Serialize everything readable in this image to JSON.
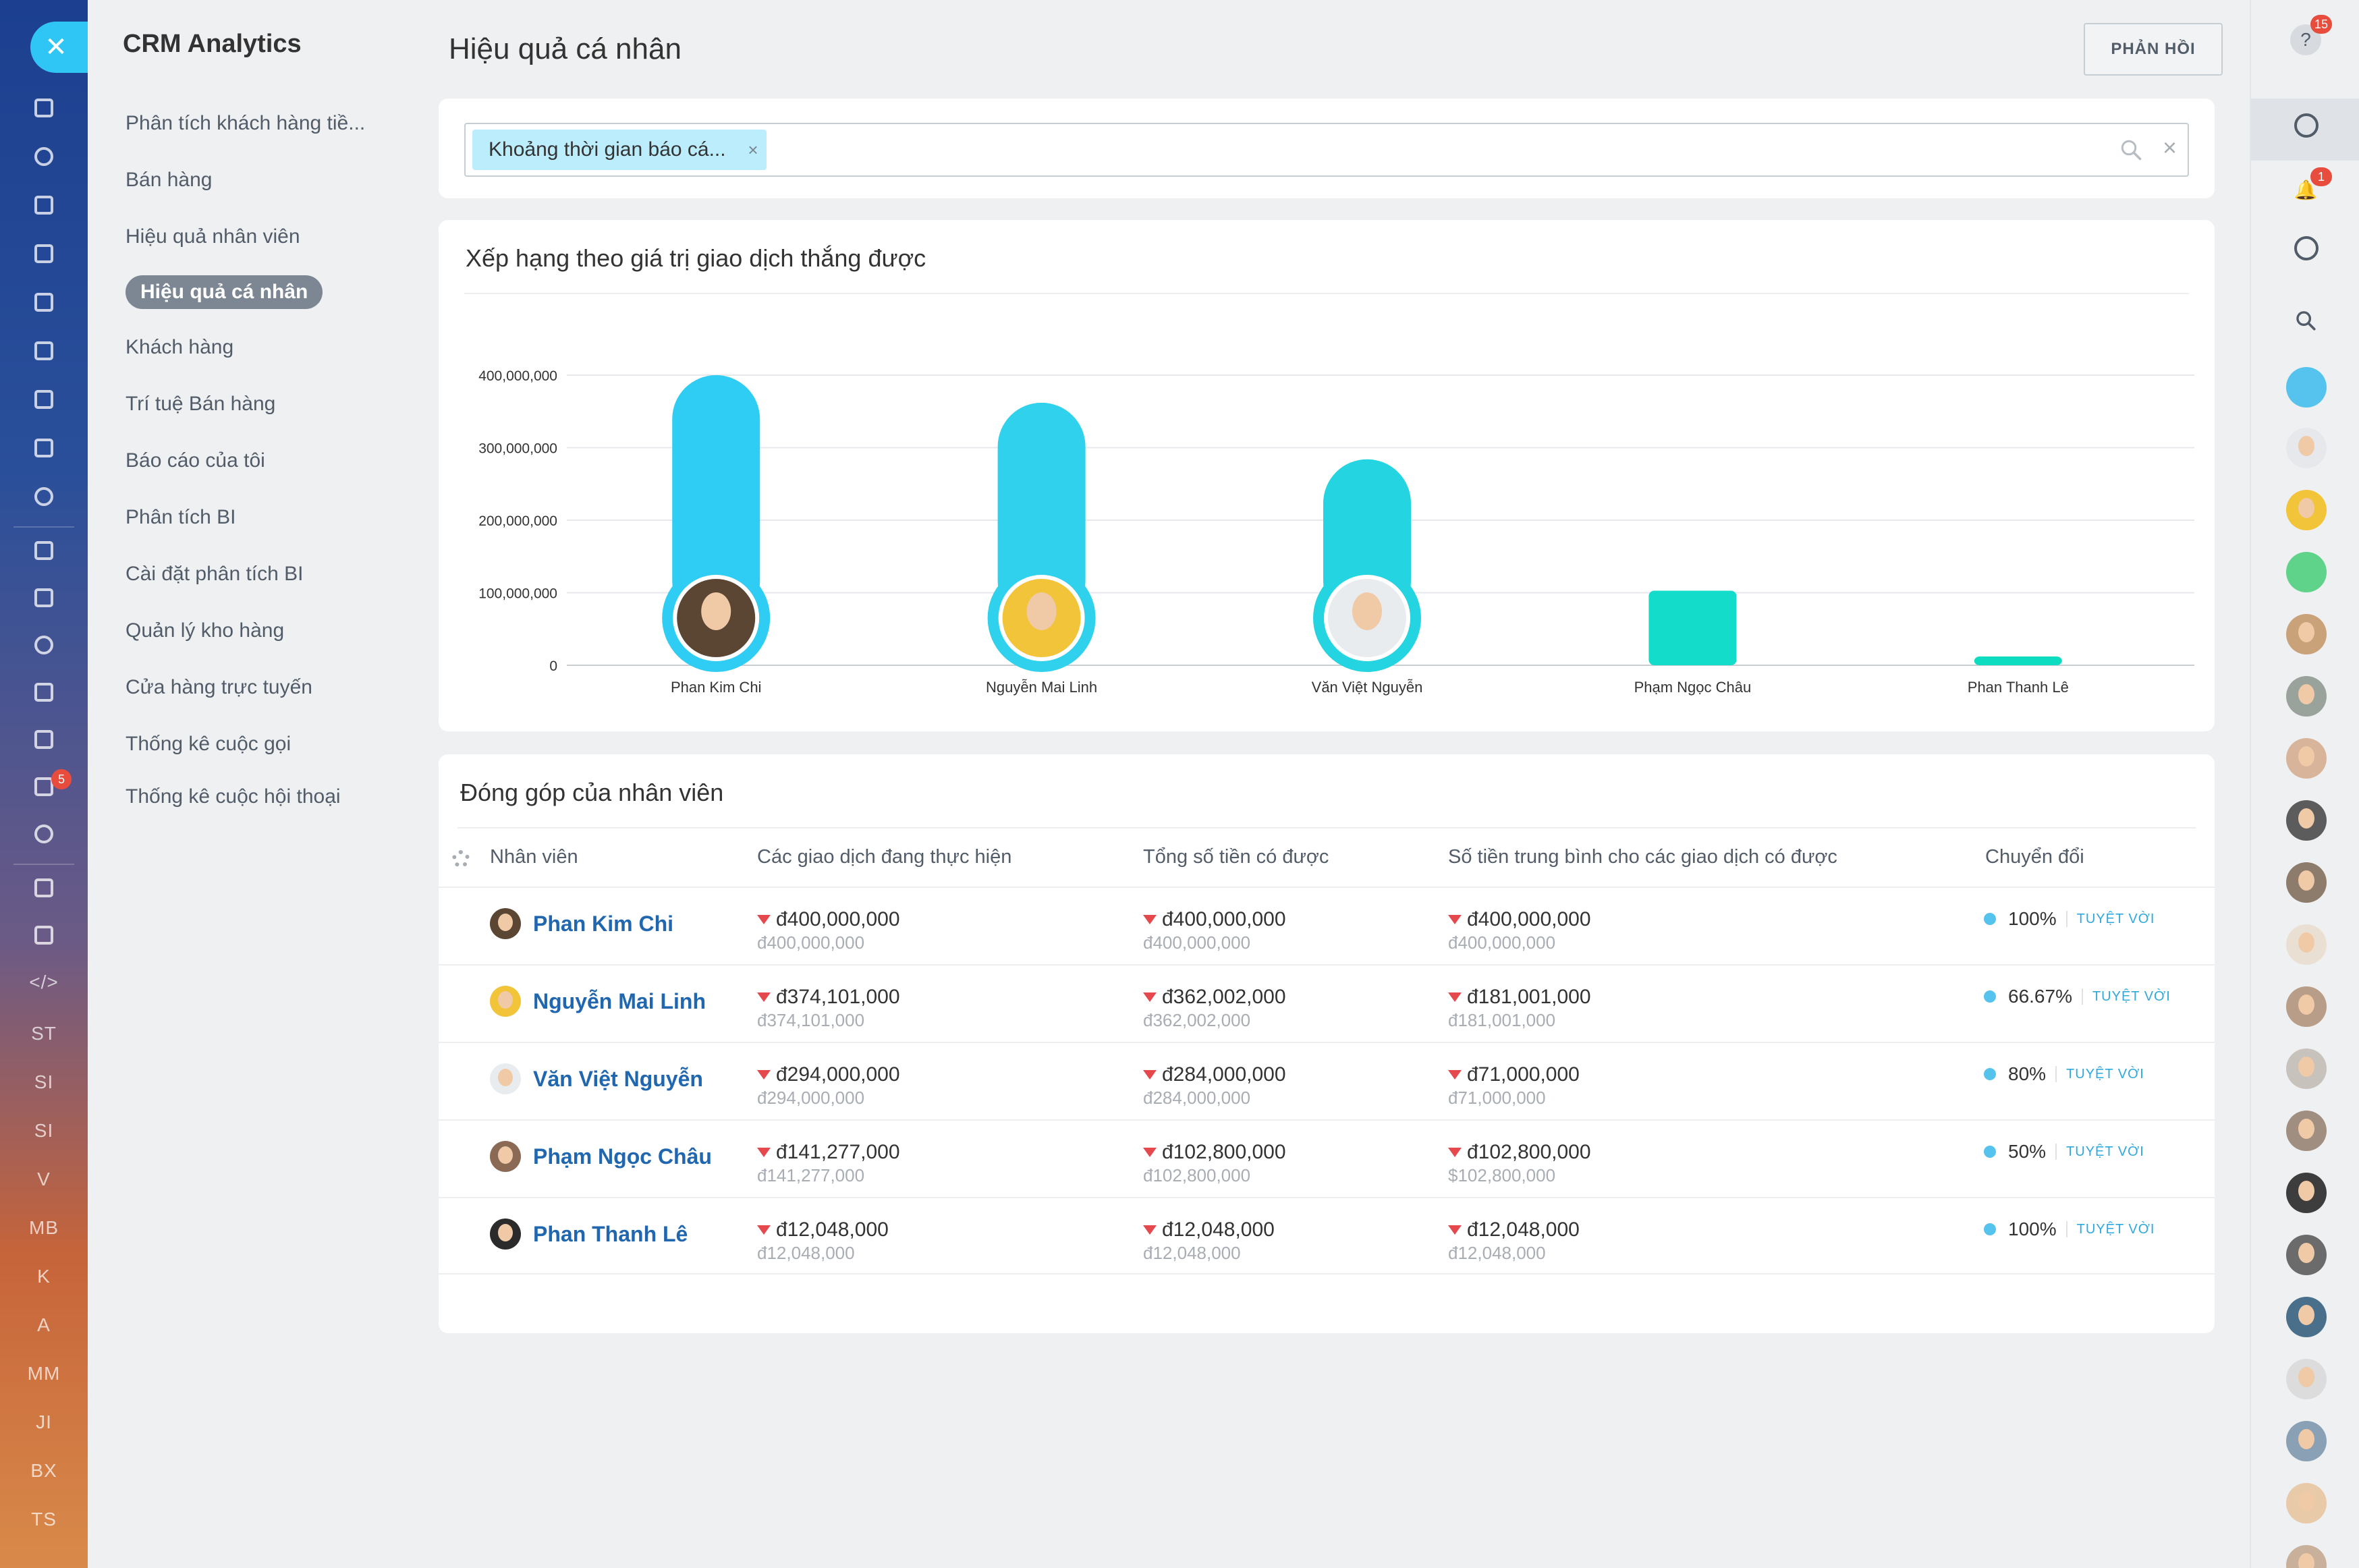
{
  "app": {
    "title": "CRM Analytics",
    "page_title": "Hiệu quả cá nhân",
    "feedback_label": "PHẢN HỒI"
  },
  "rail": {
    "close_icon": "close-icon",
    "labels": [
      "ST",
      "SI",
      "SI",
      "V",
      "MB",
      "K",
      "A",
      "MM",
      "JI",
      "BX",
      "TS"
    ],
    "badge": "5"
  },
  "menu": {
    "items": [
      "Phân tích khách hàng tiề...",
      "Bán hàng",
      "Hiệu quả nhân viên",
      "Hiệu quả cá nhân",
      "Khách hàng",
      "Trí tuệ Bán hàng",
      "Báo cáo của tôi",
      "Phân tích BI",
      "Cài đặt phân tích BI",
      "Quản lý kho hàng",
      "Cửa hàng trực tuyến",
      "Thống kê cuộc gọi",
      "Thống kê cuộc hội thoại"
    ],
    "active_index": 3
  },
  "filter": {
    "tag": "Khoảng thời gian báo cá...",
    "tag_remove": "×",
    "clear": "×"
  },
  "chart_card": {
    "title": "Xếp hạng theo giá trị giao dịch thắng được"
  },
  "chart_data": {
    "type": "bar",
    "title": "Xếp hạng theo giá trị giao dịch thắng được",
    "categories": [
      "Phan Kim Chi",
      "Nguyễn Mai Linh",
      "Văn Việt Nguyễn",
      "Phạm Ngọc Châu",
      "Phan Thanh Lê"
    ],
    "values": [
      400000000,
      362002000,
      284000000,
      102800000,
      12048000
    ],
    "yticks": [
      "0",
      "100,000,000",
      "200,000,000",
      "300,000,000",
      "400,000,000"
    ],
    "ylim": [
      0,
      400000000
    ],
    "colors": [
      "#2fcdf4",
      "#2fd1ec",
      "#24d4e0",
      "#14dcca",
      "#0ddcc0"
    ],
    "grid": true
  },
  "table": {
    "title": "Đóng góp của nhân viên",
    "headers": [
      "Nhân viên",
      "Các giao dịch đang thực hiện",
      "Tổng số tiền có được",
      "Số tiền trung bình cho các giao dịch có được",
      "Chuyển đổi"
    ],
    "rows": [
      {
        "name": "Phan Kim Chi",
        "a1": "đ400,000,000",
        "a2": "đ400,000,000",
        "b1": "đ400,000,000",
        "b2": "đ400,000,000",
        "c1": "đ400,000,000",
        "c2": "đ400,000,000",
        "pct": "100%",
        "rating": "TUYỆT VỜI"
      },
      {
        "name": "Nguyễn Mai Linh",
        "a1": "đ374,101,000",
        "a2": "đ374,101,000",
        "b1": "đ362,002,000",
        "b2": "đ362,002,000",
        "c1": "đ181,001,000",
        "c2": "đ181,001,000",
        "pct": "66.67%",
        "rating": "TUYỆT VỜI"
      },
      {
        "name": "Văn Việt Nguyễn",
        "a1": "đ294,000,000",
        "a2": "đ294,000,000",
        "b1": "đ284,000,000",
        "b2": "đ284,000,000",
        "c1": "đ71,000,000",
        "c2": "đ71,000,000",
        "pct": "80%",
        "rating": "TUYỆT VỜI"
      },
      {
        "name": "Phạm Ngọc Châu",
        "a1": "đ141,277,000",
        "a2": "đ141,277,000",
        "b1": "đ102,800,000",
        "b2": "đ102,800,000",
        "c1": "đ102,800,000",
        "c2": "$102,800,000",
        "pct": "50%",
        "rating": "TUYỆT VỜI"
      },
      {
        "name": "Phan Thanh Lê",
        "a1": "đ12,048,000",
        "a2": "đ12,048,000",
        "b1": "đ12,048,000",
        "b2": "đ12,048,000",
        "c1": "đ12,048,000",
        "c2": "đ12,048,000",
        "pct": "100%",
        "rating": "TUYỆT VỜI"
      }
    ]
  },
  "rightbar": {
    "help_badge": "15",
    "notif_badge": "1",
    "icons": [
      "help-icon",
      "copilot-icon",
      "bell-icon",
      "chat-icon",
      "search-icon"
    ]
  }
}
